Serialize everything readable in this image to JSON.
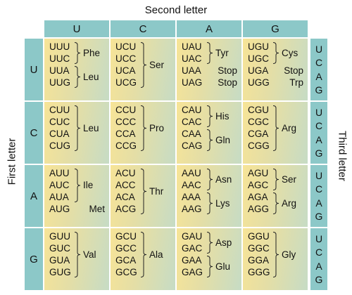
{
  "labels": {
    "second_letter": "Second letter",
    "first_letter": "First letter",
    "third_letter": "Third letter"
  },
  "bases": [
    "U",
    "C",
    "A",
    "G"
  ],
  "colors": {
    "header_teal": "#8cc8c8",
    "cell_yellow": "#f7e497",
    "cell_green": "#c6dcc5"
  },
  "rows": [
    {
      "first": "U",
      "cells": [
        {
          "codons": [
            "UUU",
            "UUC",
            "UUA",
            "UUG"
          ],
          "groups": [
            {
              "aa": "Phe",
              "span": [
                0,
                1
              ]
            },
            {
              "aa": "Leu",
              "span": [
                2,
                3
              ]
            }
          ]
        },
        {
          "codons": [
            "UCU",
            "UCC",
            "UCA",
            "UCG"
          ],
          "groups": [
            {
              "aa": "Ser",
              "span": [
                0,
                3
              ]
            }
          ]
        },
        {
          "codons": [
            "UAU",
            "UAC",
            "UAA",
            "UAG"
          ],
          "groups": [
            {
              "aa": "Tyr",
              "span": [
                0,
                1
              ]
            },
            {
              "aa": "Stop",
              "span": [
                2,
                2
              ],
              "plain": true
            },
            {
              "aa": "Stop",
              "span": [
                3,
                3
              ],
              "plain": true
            }
          ]
        },
        {
          "codons": [
            "UGU",
            "UGC",
            "UGA",
            "UGG"
          ],
          "groups": [
            {
              "aa": "Cys",
              "span": [
                0,
                1
              ]
            },
            {
              "aa": "Stop",
              "span": [
                2,
                2
              ],
              "plain": true
            },
            {
              "aa": "Trp",
              "span": [
                3,
                3
              ],
              "plain": true
            }
          ]
        }
      ]
    },
    {
      "first": "C",
      "cells": [
        {
          "codons": [
            "CUU",
            "CUC",
            "CUA",
            "CUG"
          ],
          "groups": [
            {
              "aa": "Leu",
              "span": [
                0,
                3
              ]
            }
          ]
        },
        {
          "codons": [
            "CCU",
            "CCC",
            "CCA",
            "CCG"
          ],
          "groups": [
            {
              "aa": "Pro",
              "span": [
                0,
                3
              ]
            }
          ]
        },
        {
          "codons": [
            "CAU",
            "CAC",
            "CAA",
            "CAG"
          ],
          "groups": [
            {
              "aa": "His",
              "span": [
                0,
                1
              ]
            },
            {
              "aa": "Gln",
              "span": [
                2,
                3
              ]
            }
          ]
        },
        {
          "codons": [
            "CGU",
            "CGC",
            "CGA",
            "CGG"
          ],
          "groups": [
            {
              "aa": "Arg",
              "span": [
                0,
                3
              ]
            }
          ]
        }
      ]
    },
    {
      "first": "A",
      "cells": [
        {
          "codons": [
            "AUU",
            "AUC",
            "AUA",
            "AUG"
          ],
          "groups": [
            {
              "aa": "Ile",
              "span": [
                0,
                2
              ]
            },
            {
              "aa": "Met",
              "span": [
                3,
                3
              ],
              "plain": true
            }
          ]
        },
        {
          "codons": [
            "ACU",
            "ACC",
            "ACA",
            "ACG"
          ],
          "groups": [
            {
              "aa": "Thr",
              "span": [
                0,
                3
              ]
            }
          ]
        },
        {
          "codons": [
            "AAU",
            "AAC",
            "AAA",
            "AAG"
          ],
          "groups": [
            {
              "aa": "Asn",
              "span": [
                0,
                1
              ]
            },
            {
              "aa": "Lys",
              "span": [
                2,
                3
              ]
            }
          ]
        },
        {
          "codons": [
            "AGU",
            "AGC",
            "AGA",
            "AGG"
          ],
          "groups": [
            {
              "aa": "Ser",
              "span": [
                0,
                1
              ]
            },
            {
              "aa": "Arg",
              "span": [
                2,
                3
              ]
            }
          ]
        }
      ]
    },
    {
      "first": "G",
      "cells": [
        {
          "codons": [
            "GUU",
            "GUC",
            "GUA",
            "GUG"
          ],
          "groups": [
            {
              "aa": "Val",
              "span": [
                0,
                3
              ]
            }
          ]
        },
        {
          "codons": [
            "GCU",
            "GCC",
            "GCA",
            "GCG"
          ],
          "groups": [
            {
              "aa": "Ala",
              "span": [
                0,
                3
              ]
            }
          ]
        },
        {
          "codons": [
            "GAU",
            "GAC",
            "GAA",
            "GAG"
          ],
          "groups": [
            {
              "aa": "Asp",
              "span": [
                0,
                1
              ]
            },
            {
              "aa": "Glu",
              "span": [
                2,
                3
              ]
            }
          ]
        },
        {
          "codons": [
            "GGU",
            "GGC",
            "GGA",
            "GGG"
          ],
          "groups": [
            {
              "aa": "Gly",
              "span": [
                0,
                3
              ]
            }
          ]
        }
      ]
    }
  ]
}
